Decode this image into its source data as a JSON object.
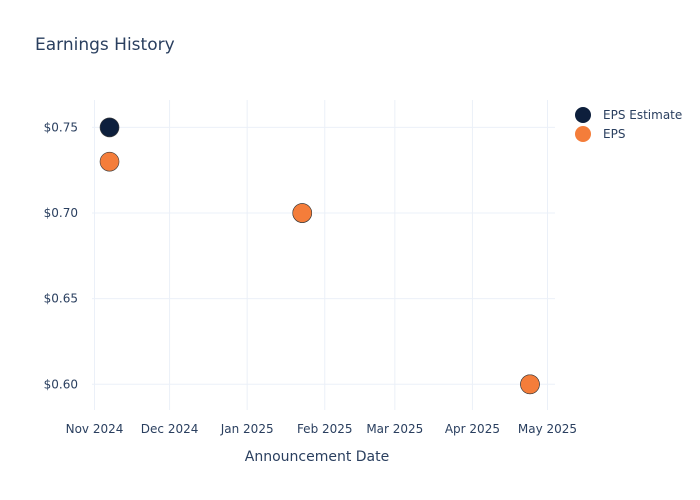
{
  "chart_data": {
    "type": "scatter",
    "title": "Earnings History",
    "xlabel": "Announcement Date",
    "ylabel": "",
    "x_ticks": [
      "Nov 2024",
      "Dec 2024",
      "Jan 2025",
      "Feb 2025",
      "Mar 2025",
      "Apr 2025",
      "May 2025"
    ],
    "y_ticks": [
      "$0.60",
      "$0.65",
      "$0.70",
      "$0.75"
    ],
    "ylim": [
      0.585,
      0.766
    ],
    "xlim": [
      "2024-10-31",
      "2025-05-04"
    ],
    "grid": true,
    "legend_position": "top-right",
    "series": [
      {
        "name": "EPS Estimate",
        "color": "#0d1f3c",
        "points": [
          {
            "x": "2024-11-07",
            "y": 0.75
          },
          {
            "x": "2025-01-23",
            "y": 0.7
          },
          {
            "x": "2025-04-24",
            "y": 0.6
          }
        ]
      },
      {
        "name": "EPS",
        "color": "#f47d3a",
        "points": [
          {
            "x": "2024-11-07",
            "y": 0.73
          },
          {
            "x": "2025-01-23",
            "y": 0.7
          },
          {
            "x": "2025-04-24",
            "y": 0.6
          }
        ]
      }
    ]
  }
}
